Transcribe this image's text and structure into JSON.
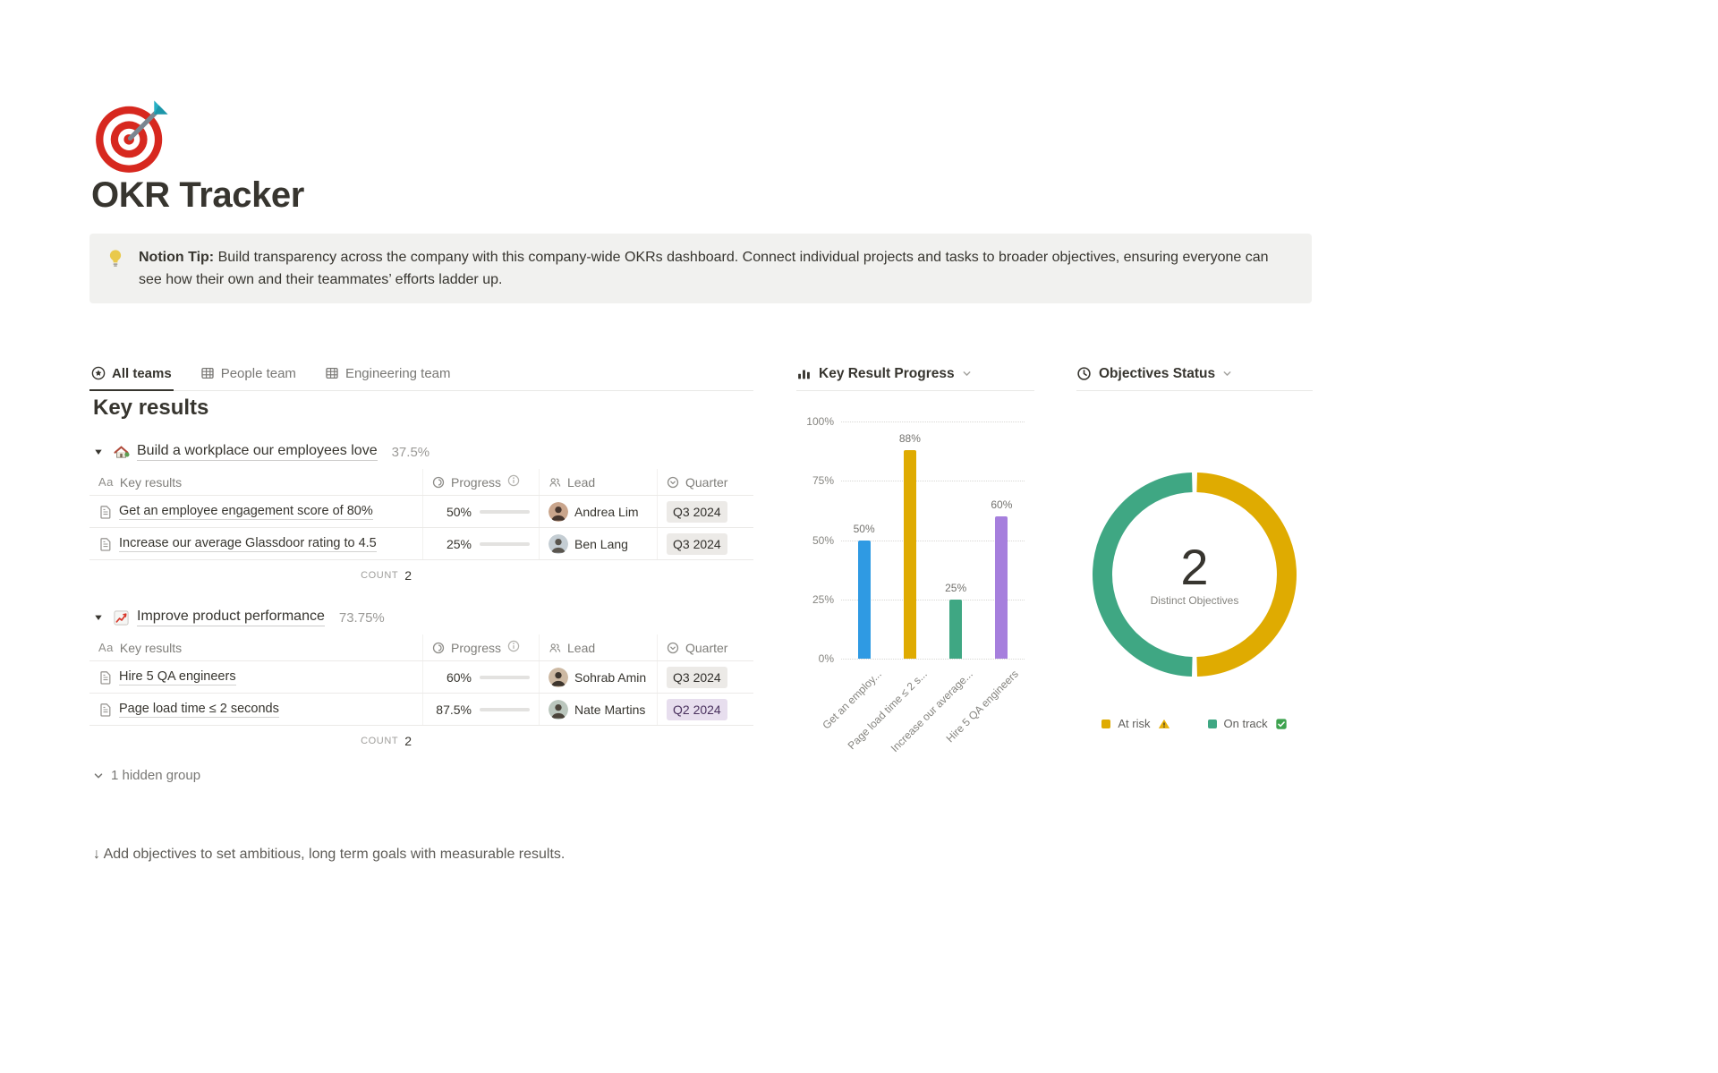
{
  "page": {
    "icon": "target-emoji",
    "title": "OKR Tracker"
  },
  "callout": {
    "icon": "lightbulb-emoji",
    "lead": "Notion Tip:",
    "text": "Build transparency across the company with this company-wide OKRs dashboard. Connect individual projects and tasks to broader objectives, ensuring everyone can see how their own and their teammates’ efforts ladder up."
  },
  "tabs": [
    {
      "label": "All teams",
      "icon": "star-view-icon",
      "active": true
    },
    {
      "label": "People team",
      "icon": "table-view-icon",
      "active": false
    },
    {
      "label": "Engineering team",
      "icon": "table-view-icon",
      "active": false
    }
  ],
  "key_results": {
    "heading": "Key results",
    "header": {
      "name_icon": "Aa",
      "name": "Key results",
      "progress": "Progress",
      "lead": "Lead",
      "quarter": "Quarter"
    },
    "groups": [
      {
        "icon": "house-emoji",
        "title": "Build a workplace our employees love",
        "percent": "37.5%",
        "count_label": "COUNT",
        "count": "2",
        "rows": [
          {
            "name": "Get an employee engagement score of 80%",
            "progress": "50%",
            "progress_value": 50,
            "lead": "Andrea Lim",
            "quarter": "Q3 2024",
            "quarter_style": "default"
          },
          {
            "name": "Increase our average Glassdoor rating to 4.5",
            "progress": "25%",
            "progress_value": 25,
            "lead": "Ben Lang",
            "quarter": "Q3 2024",
            "quarter_style": "default"
          }
        ]
      },
      {
        "icon": "chart-up-emoji",
        "title": "Improve product performance",
        "percent": "73.75%",
        "count_label": "COUNT",
        "count": "2",
        "rows": [
          {
            "name": "Hire 5 QA engineers",
            "progress": "60%",
            "progress_value": 60,
            "lead": "Sohrab Amin",
            "quarter": "Q3 2024",
            "quarter_style": "default"
          },
          {
            "name": "Page load time ≤ 2 seconds",
            "progress": "87.5%",
            "progress_value": 87.5,
            "lead": "Nate Martins",
            "quarter": "Q2 2024",
            "quarter_style": "purple"
          }
        ]
      }
    ],
    "hidden_group": "1 hidden group",
    "footer_hint": "↓ Add objectives to set ambitious, long term goals with measurable results."
  },
  "chart_data": [
    {
      "type": "bar",
      "title": "Key Result Progress",
      "categories": [
        "Get an employ...",
        "Page load time ≤ 2 s...",
        "Increase our average...",
        "Hire 5 QA engineers"
      ],
      "values": [
        50,
        88,
        25,
        60
      ],
      "value_labels": [
        "50%",
        "88%",
        "25%",
        "60%"
      ],
      "bar_colors": [
        "#2f9ae3",
        "#dfab01",
        "#3fa783",
        "#a67fdd"
      ],
      "yticks": [
        "100%",
        "75%",
        "50%",
        "25%",
        "0%"
      ],
      "ylim": [
        0,
        100
      ],
      "grid": "dotted-horizontal",
      "legend": "none"
    },
    {
      "type": "donut",
      "title": "Objectives Status",
      "center_value": "2",
      "center_label": "Distinct Objectives",
      "slices": [
        {
          "label": "At risk",
          "icon": "warning-icon",
          "value": 1,
          "color": "#dfab01"
        },
        {
          "label": "On track",
          "icon": "check-icon",
          "value": 1,
          "color": "#3fa783"
        }
      ],
      "legend": "bottom"
    }
  ]
}
